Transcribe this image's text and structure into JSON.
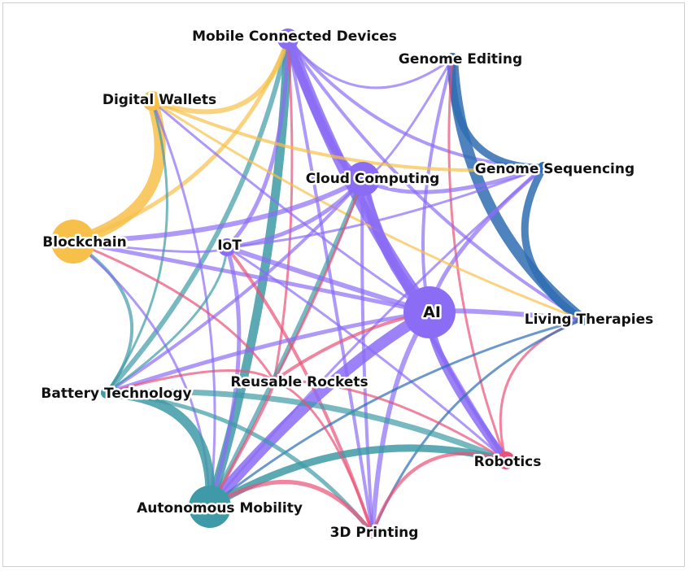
{
  "colors": {
    "purple": "#8b6cf5",
    "teal": "#3e9aa6",
    "yellow": "#f7c04a",
    "blue": "#2f6db3",
    "pink": "#ea5178"
  },
  "nodes": [
    {
      "id": "mobile",
      "label": "Mobile Connected Devices",
      "color": "purple"
    },
    {
      "id": "genome_editing",
      "label": "Genome Editing",
      "color": "blue"
    },
    {
      "id": "digital_wallets",
      "label": "Digital Wallets",
      "color": "yellow"
    },
    {
      "id": "cloud",
      "label": "Cloud Computing",
      "color": "purple"
    },
    {
      "id": "genome_seq",
      "label": "Genome Sequencing",
      "color": "blue"
    },
    {
      "id": "blockchain",
      "label": "Blockchain",
      "color": "yellow"
    },
    {
      "id": "iot",
      "label": "IoT",
      "color": "purple"
    },
    {
      "id": "ai",
      "label": "AI",
      "color": "purple"
    },
    {
      "id": "living",
      "label": "Living Therapies",
      "color": "blue"
    },
    {
      "id": "battery",
      "label": "Battery Technology",
      "color": "teal"
    },
    {
      "id": "rockets",
      "label": "Reusable Rockets",
      "color": "pink"
    },
    {
      "id": "robotics",
      "label": "Robotics",
      "color": "pink"
    },
    {
      "id": "autonomous",
      "label": "Autonomous Mobility",
      "color": "teal"
    },
    {
      "id": "printing",
      "label": "3D Printing",
      "color": "pink"
    }
  ],
  "edges": [
    {
      "s": "mobile",
      "t": "ai",
      "w": 14,
      "c": "purple"
    },
    {
      "s": "mobile",
      "t": "cloud",
      "w": 9,
      "c": "purple"
    },
    {
      "s": "mobile",
      "t": "autonomous",
      "w": 11,
      "c": "teal"
    },
    {
      "s": "mobile",
      "t": "battery",
      "w": 6,
      "c": "teal"
    },
    {
      "s": "mobile",
      "t": "digital_wallets",
      "w": 6,
      "c": "yellow"
    },
    {
      "s": "mobile",
      "t": "blockchain",
      "w": 5,
      "c": "yellow"
    },
    {
      "s": "mobile",
      "t": "iot",
      "w": 5,
      "c": "purple"
    },
    {
      "s": "mobile",
      "t": "genome_seq",
      "w": 4,
      "c": "purple"
    },
    {
      "s": "mobile",
      "t": "living",
      "w": 4,
      "c": "purple"
    },
    {
      "s": "mobile",
      "t": "robotics",
      "w": 5,
      "c": "purple"
    },
    {
      "s": "mobile",
      "t": "rockets",
      "w": 3,
      "c": "pink"
    },
    {
      "s": "mobile",
      "t": "genome_editing",
      "w": 3,
      "c": "purple"
    },
    {
      "s": "mobile",
      "t": "printing",
      "w": 4,
      "c": "purple"
    },
    {
      "s": "genome_editing",
      "t": "living",
      "w": 14,
      "c": "blue"
    },
    {
      "s": "genome_editing",
      "t": "genome_seq",
      "w": 9,
      "c": "blue"
    },
    {
      "s": "genome_editing",
      "t": "ai",
      "w": 4,
      "c": "purple"
    },
    {
      "s": "genome_editing",
      "t": "robotics",
      "w": 3,
      "c": "pink"
    },
    {
      "s": "genome_editing",
      "t": "cloud",
      "w": 3,
      "c": "purple"
    },
    {
      "s": "genome_seq",
      "t": "living",
      "w": 9,
      "c": "blue"
    },
    {
      "s": "genome_seq",
      "t": "ai",
      "w": 5,
      "c": "purple"
    },
    {
      "s": "genome_seq",
      "t": "cloud",
      "w": 5,
      "c": "purple"
    },
    {
      "s": "genome_seq",
      "t": "iot",
      "w": 3,
      "c": "purple"
    },
    {
      "s": "genome_seq",
      "t": "digital_wallets",
      "w": 4,
      "c": "yellow"
    },
    {
      "s": "genome_seq",
      "t": "autonomous",
      "w": 3,
      "c": "purple"
    },
    {
      "s": "digital_wallets",
      "t": "blockchain",
      "w": 14,
      "c": "yellow"
    },
    {
      "s": "digital_wallets",
      "t": "battery",
      "w": 3,
      "c": "teal"
    },
    {
      "s": "digital_wallets",
      "t": "ai",
      "w": 3,
      "c": "purple"
    },
    {
      "s": "digital_wallets",
      "t": "autonomous",
      "w": 3,
      "c": "purple"
    },
    {
      "s": "digital_wallets",
      "t": "living",
      "w": 3,
      "c": "yellow"
    },
    {
      "s": "blockchain",
      "t": "cloud",
      "w": 6,
      "c": "purple"
    },
    {
      "s": "blockchain",
      "t": "ai",
      "w": 5,
      "c": "purple"
    },
    {
      "s": "blockchain",
      "t": "battery",
      "w": 4,
      "c": "teal"
    },
    {
      "s": "blockchain",
      "t": "autonomous",
      "w": 3,
      "c": "purple"
    },
    {
      "s": "blockchain",
      "t": "rockets",
      "w": 3,
      "c": "pink"
    },
    {
      "s": "blockchain",
      "t": "iot",
      "w": 3,
      "c": "purple"
    },
    {
      "s": "cloud",
      "t": "ai",
      "w": 12,
      "c": "purple"
    },
    {
      "s": "cloud",
      "t": "iot",
      "w": 5,
      "c": "purple"
    },
    {
      "s": "cloud",
      "t": "autonomous",
      "w": 6,
      "c": "teal"
    },
    {
      "s": "cloud",
      "t": "battery",
      "w": 4,
      "c": "purple"
    },
    {
      "s": "cloud",
      "t": "robotics",
      "w": 5,
      "c": "purple"
    },
    {
      "s": "cloud",
      "t": "printing",
      "w": 4,
      "c": "purple"
    },
    {
      "s": "cloud",
      "t": "rockets",
      "w": 3,
      "c": "pink"
    },
    {
      "s": "iot",
      "t": "ai",
      "w": 6,
      "c": "purple"
    },
    {
      "s": "iot",
      "t": "autonomous",
      "w": 5,
      "c": "purple"
    },
    {
      "s": "iot",
      "t": "printing",
      "w": 4,
      "c": "pink"
    },
    {
      "s": "iot",
      "t": "battery",
      "w": 3,
      "c": "teal"
    },
    {
      "s": "iot",
      "t": "robotics",
      "w": 3,
      "c": "purple"
    },
    {
      "s": "ai",
      "t": "autonomous",
      "w": 14,
      "c": "purple"
    },
    {
      "s": "ai",
      "t": "robotics",
      "w": 10,
      "c": "purple"
    },
    {
      "s": "ai",
      "t": "printing",
      "w": 6,
      "c": "purple"
    },
    {
      "s": "ai",
      "t": "living",
      "w": 6,
      "c": "purple"
    },
    {
      "s": "ai",
      "t": "battery",
      "w": 5,
      "c": "purple"
    },
    {
      "s": "ai",
      "t": "rockets",
      "w": 4,
      "c": "pink"
    },
    {
      "s": "living",
      "t": "robotics",
      "w": 3,
      "c": "pink"
    },
    {
      "s": "living",
      "t": "autonomous",
      "w": 3,
      "c": "blue"
    },
    {
      "s": "living",
      "t": "printing",
      "w": 3,
      "c": "blue"
    },
    {
      "s": "battery",
      "t": "autonomous",
      "w": 12,
      "c": "teal"
    },
    {
      "s": "battery",
      "t": "robotics",
      "w": 7,
      "c": "teal"
    },
    {
      "s": "battery",
      "t": "printing",
      "w": 5,
      "c": "teal"
    },
    {
      "s": "battery",
      "t": "rockets",
      "w": 3,
      "c": "pink"
    },
    {
      "s": "autonomous",
      "t": "robotics",
      "w": 9,
      "c": "teal"
    },
    {
      "s": "autonomous",
      "t": "printing",
      "w": 5,
      "c": "pink"
    },
    {
      "s": "autonomous",
      "t": "rockets",
      "w": 4,
      "c": "pink"
    },
    {
      "s": "rockets",
      "t": "printing",
      "w": 3,
      "c": "pink"
    },
    {
      "s": "rockets",
      "t": "robotics",
      "w": 3,
      "c": "pink"
    },
    {
      "s": "robotics",
      "t": "printing",
      "w": 4,
      "c": "pink"
    }
  ]
}
